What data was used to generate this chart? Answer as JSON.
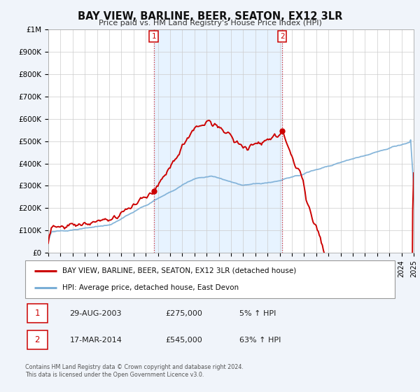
{
  "title": "BAY VIEW, BARLINE, BEER, SEATON, EX12 3LR",
  "subtitle": "Price paid vs. HM Land Registry's House Price Index (HPI)",
  "legend_text_1": "BAY VIEW, BARLINE, BEER, SEATON, EX12 3LR (detached house)",
  "legend_text_2": "HPI: Average price, detached house, East Devon",
  "marker1_date": "29-AUG-2003",
  "marker1_price": 275000,
  "marker1_hpi_pct": "5%",
  "marker2_date": "17-MAR-2014",
  "marker2_price": 545000,
  "marker2_hpi_pct": "63%",
  "footer1": "Contains HM Land Registry data © Crown copyright and database right 2024.",
  "footer2": "This data is licensed under the Open Government Licence v3.0.",
  "property_color": "#cc0000",
  "hpi_color": "#7aaed6",
  "bg_color": "#f0f4fa",
  "plot_bg_color": "#ffffff",
  "span_color": "#ddeeff",
  "marker1_x": 2003.66,
  "marker2_x": 2014.21,
  "ylim_max": 1000000,
  "xlim_min": 1995,
  "xlim_max": 2025,
  "yticks": [
    0,
    100000,
    200000,
    300000,
    400000,
    500000,
    600000,
    700000,
    800000,
    900000,
    1000000
  ],
  "ytick_labels": [
    "£0",
    "£100K",
    "£200K",
    "£300K",
    "£400K",
    "£500K",
    "£600K",
    "£700K",
    "£800K",
    "£900K",
    "£1M"
  ]
}
